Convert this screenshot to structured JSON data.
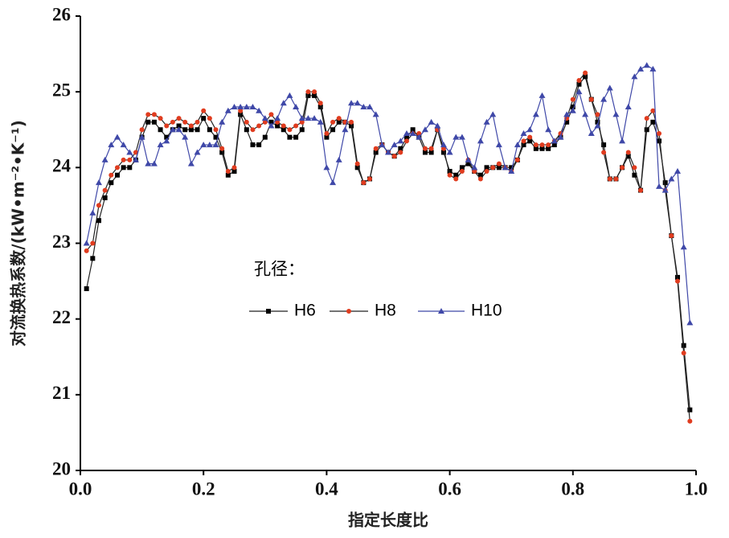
{
  "chart_data": {
    "type": "line",
    "xlabel": "指定长度比",
    "ylabel": "对流换热系数/(kW•m⁻²•K⁻¹)",
    "legend_title": "孔径：",
    "x": [
      0.01,
      0.02,
      0.03,
      0.04,
      0.05,
      0.06,
      0.07,
      0.08,
      0.09,
      0.1,
      0.11,
      0.12,
      0.13,
      0.14,
      0.15,
      0.16,
      0.17,
      0.18,
      0.19,
      0.2,
      0.21,
      0.22,
      0.23,
      0.24,
      0.25,
      0.26,
      0.27,
      0.28,
      0.29,
      0.3,
      0.31,
      0.32,
      0.33,
      0.34,
      0.35,
      0.36,
      0.37,
      0.38,
      0.39,
      0.4,
      0.41,
      0.42,
      0.43,
      0.44,
      0.45,
      0.46,
      0.47,
      0.48,
      0.49,
      0.5,
      0.51,
      0.52,
      0.53,
      0.54,
      0.55,
      0.56,
      0.57,
      0.58,
      0.59,
      0.6,
      0.61,
      0.62,
      0.63,
      0.64,
      0.65,
      0.66,
      0.67,
      0.68,
      0.69,
      0.7,
      0.71,
      0.72,
      0.73,
      0.74,
      0.75,
      0.76,
      0.77,
      0.78,
      0.79,
      0.8,
      0.81,
      0.82,
      0.83,
      0.84,
      0.85,
      0.86,
      0.87,
      0.88,
      0.89,
      0.9,
      0.91,
      0.92,
      0.93,
      0.94,
      0.95,
      0.96,
      0.97,
      0.98,
      0.99
    ],
    "series": [
      {
        "name": "H6",
        "color": "#000000",
        "marker": "square",
        "values": [
          22.4,
          22.8,
          23.3,
          23.6,
          23.8,
          23.9,
          24.0,
          24.0,
          24.1,
          24.4,
          24.6,
          24.6,
          24.5,
          24.4,
          24.5,
          24.55,
          24.5,
          24.5,
          24.5,
          24.65,
          24.5,
          24.4,
          24.2,
          23.9,
          23.95,
          24.7,
          24.5,
          24.3,
          24.3,
          24.4,
          24.6,
          24.55,
          24.5,
          24.4,
          24.4,
          24.5,
          24.95,
          24.95,
          24.8,
          24.4,
          24.5,
          24.6,
          24.6,
          24.55,
          24.0,
          23.8,
          23.85,
          24.2,
          24.3,
          24.2,
          24.15,
          24.25,
          24.4,
          24.5,
          24.4,
          24.2,
          24.2,
          24.5,
          24.2,
          23.95,
          23.9,
          24.0,
          24.05,
          23.95,
          23.9,
          24.0,
          24.0,
          24.0,
          24.0,
          24.0,
          24.1,
          24.3,
          24.35,
          24.25,
          24.25,
          24.25,
          24.3,
          24.4,
          24.6,
          24.8,
          25.1,
          25.2,
          24.9,
          24.6,
          24.3,
          23.85,
          23.85,
          24.0,
          24.15,
          23.9,
          23.7,
          24.5,
          24.6,
          24.35,
          23.8,
          23.1,
          22.55,
          21.65,
          20.8
        ]
      },
      {
        "name": "H8",
        "color": "#e03c1f",
        "marker": "circle",
        "values": [
          22.9,
          23.0,
          23.5,
          23.7,
          23.9,
          24.0,
          24.1,
          24.1,
          24.2,
          24.5,
          24.7,
          24.7,
          24.65,
          24.55,
          24.6,
          24.65,
          24.6,
          24.55,
          24.6,
          24.75,
          24.65,
          24.5,
          24.25,
          23.95,
          24.0,
          24.75,
          24.6,
          24.5,
          24.55,
          24.6,
          24.7,
          24.6,
          24.55,
          24.5,
          24.55,
          24.6,
          25.0,
          25.0,
          24.85,
          24.45,
          24.6,
          24.65,
          24.6,
          24.6,
          24.05,
          23.8,
          23.85,
          24.25,
          24.3,
          24.2,
          24.15,
          24.2,
          24.35,
          24.45,
          24.45,
          24.25,
          24.25,
          24.5,
          24.25,
          23.9,
          23.85,
          23.95,
          24.1,
          23.95,
          23.85,
          23.95,
          24.0,
          24.05,
          24.0,
          23.95,
          24.1,
          24.35,
          24.4,
          24.3,
          24.3,
          24.3,
          24.35,
          24.45,
          24.65,
          24.9,
          25.15,
          25.25,
          24.9,
          24.7,
          24.2,
          23.85,
          23.85,
          24.0,
          24.2,
          24.0,
          23.7,
          24.65,
          24.75,
          24.45,
          23.7,
          23.1,
          22.5,
          21.55,
          20.65
        ]
      },
      {
        "name": "H10",
        "color": "#3f48a8",
        "marker": "triangle",
        "values": [
          23.0,
          23.4,
          23.8,
          24.1,
          24.3,
          24.4,
          24.3,
          24.2,
          24.1,
          24.4,
          24.05,
          24.05,
          24.3,
          24.35,
          24.5,
          24.5,
          24.4,
          24.05,
          24.2,
          24.3,
          24.3,
          24.3,
          24.6,
          24.75,
          24.8,
          24.8,
          24.8,
          24.8,
          24.75,
          24.65,
          24.55,
          24.65,
          24.85,
          24.95,
          24.8,
          24.65,
          24.65,
          24.65,
          24.6,
          24.0,
          23.8,
          24.1,
          24.5,
          24.85,
          24.85,
          24.8,
          24.8,
          24.7,
          24.3,
          24.2,
          24.3,
          24.35,
          24.45,
          24.45,
          24.4,
          24.5,
          24.6,
          24.55,
          24.3,
          24.2,
          24.4,
          24.4,
          24.1,
          24.0,
          24.35,
          24.6,
          24.7,
          24.3,
          24.0,
          23.95,
          24.3,
          24.45,
          24.5,
          24.7,
          24.95,
          24.5,
          24.35,
          24.4,
          24.7,
          24.75,
          25.0,
          24.7,
          24.45,
          24.55,
          24.9,
          25.05,
          24.7,
          24.35,
          24.8,
          25.2,
          25.3,
          25.35,
          25.3,
          23.75,
          23.7,
          23.85,
          23.95,
          22.95,
          21.95
        ]
      }
    ],
    "xlim": [
      0,
      1
    ],
    "xticks": [
      {
        "value": 0,
        "label": "0.0"
      },
      0.2,
      0.4,
      0.6,
      0.8,
      {
        "value": 1,
        "label": "1.0"
      }
    ],
    "ylim": [
      20,
      26
    ],
    "yticks": [
      20,
      21,
      22,
      23,
      24,
      25,
      26
    ]
  }
}
